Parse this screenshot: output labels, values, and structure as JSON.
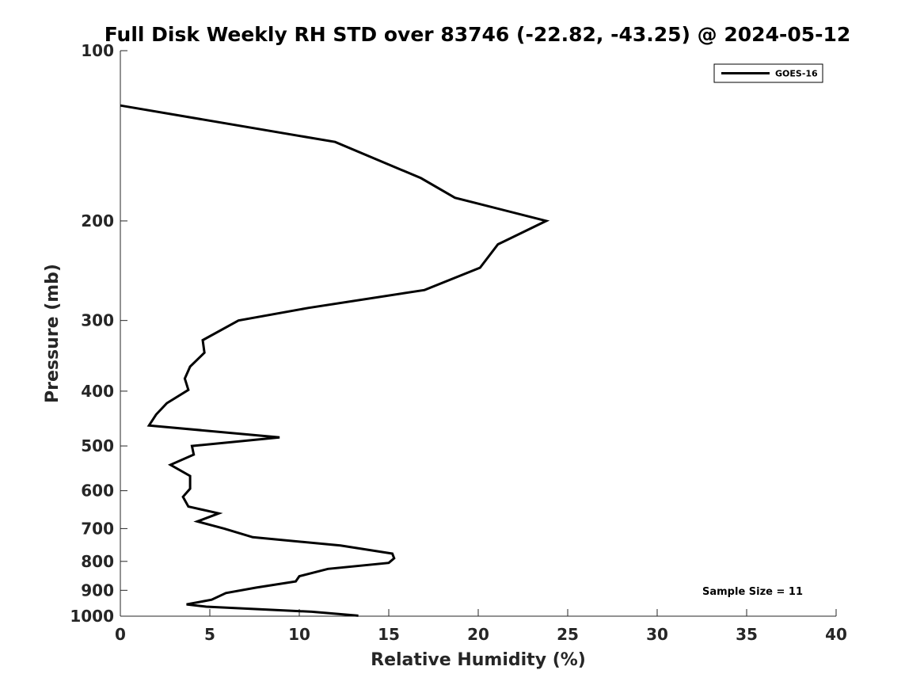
{
  "chart_data": {
    "type": "line",
    "title": "Full Disk Weekly RH STD over 83746 (-22.82, -43.25) @ 2024-05-12",
    "xlabel": "Relative Humidity (%)",
    "ylabel": "Pressure (mb)",
    "xlim": [
      0,
      40
    ],
    "ylim": [
      100,
      1000
    ],
    "yscale": "log",
    "y_reversed": true,
    "grid": false,
    "x_ticks": [
      0,
      5,
      10,
      15,
      20,
      25,
      30,
      35,
      40
    ],
    "x_tick_labels": [
      "0",
      "5",
      "10",
      "15",
      "20",
      "25",
      "30",
      "35",
      "40"
    ],
    "y_ticks": [
      100,
      200,
      300,
      400,
      500,
      600,
      700,
      800,
      900,
      1000
    ],
    "y_tick_labels": [
      "100",
      "200",
      "300",
      "400",
      "500",
      "600",
      "700",
      "800",
      "900",
      "1000"
    ],
    "legend": {
      "location": "top-right",
      "entries": [
        "GOES-16"
      ]
    },
    "annotation": "Sample Size = 11",
    "series": [
      {
        "name": "GOES-16",
        "color": "#000000",
        "x": [
          0.0,
          12.0,
          16.8,
          18.7,
          23.8,
          21.1,
          20.1,
          17.0,
          10.5,
          6.6,
          4.6,
          4.7,
          3.9,
          3.6,
          3.8,
          2.6,
          2.0,
          1.6,
          8.9,
          4.0,
          4.1,
          2.8,
          3.9,
          3.9,
          3.5,
          3.8,
          5.5,
          4.3,
          5.8,
          7.4,
          12.3,
          15.2,
          15.3,
          15.0,
          11.6,
          10.0,
          9.8,
          7.6,
          5.9,
          5.1,
          3.7,
          4.8,
          10.7,
          13.3
        ],
        "y": [
          125,
          145,
          168,
          182,
          200,
          220,
          242,
          265,
          285,
          300,
          325,
          342,
          362,
          380,
          398,
          420,
          440,
          460,
          483,
          500,
          518,
          540,
          565,
          595,
          615,
          640,
          658,
          680,
          700,
          725,
          750,
          775,
          790,
          805,
          825,
          850,
          868,
          890,
          910,
          935,
          953,
          962,
          982,
          998
        ]
      }
    ]
  }
}
